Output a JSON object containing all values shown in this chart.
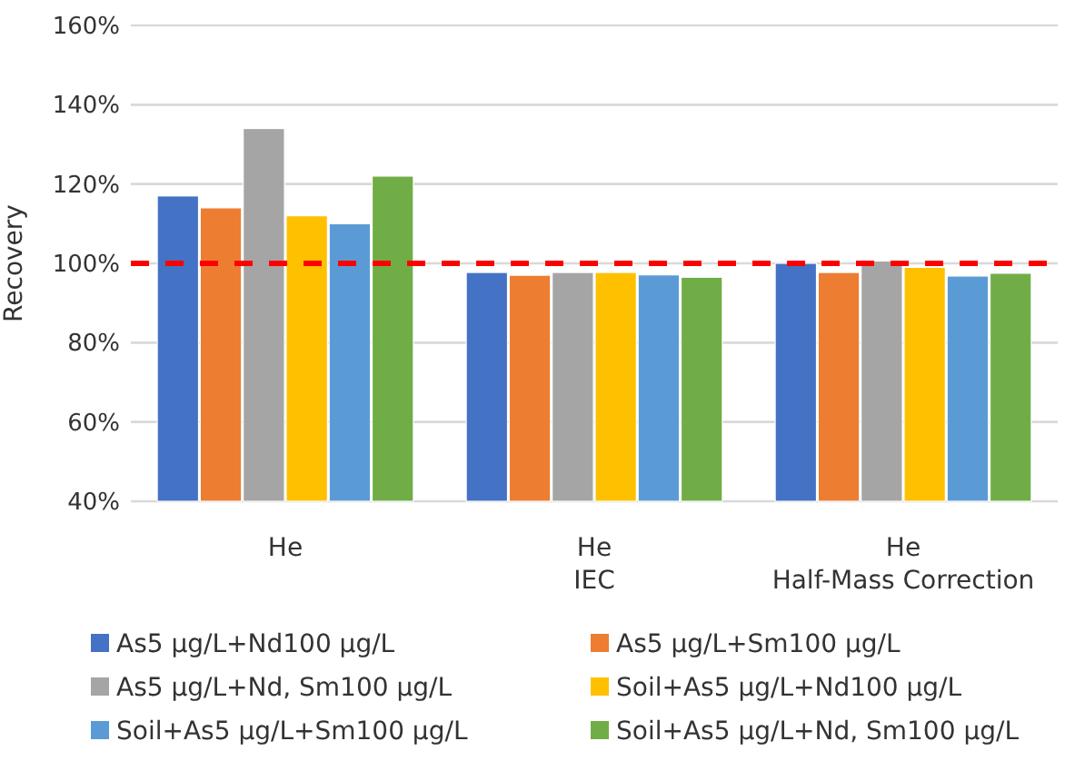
{
  "chart_data": {
    "type": "bar",
    "ylabel": "Recovery",
    "categories": [
      "He",
      "He\nIEC",
      "He\nHalf-Mass Correction"
    ],
    "series": [
      {
        "name": "As5 µg/L+Nd100 µg/L",
        "color": "#4472c4",
        "values": [
          117,
          97.7,
          100
        ]
      },
      {
        "name": "As5 µg/L+Sm100 µg/L",
        "color": "#ed7d31",
        "values": [
          114,
          97,
          97.7
        ]
      },
      {
        "name": "As5 µg/L+Nd, Sm100 µg/L",
        "color": "#a5a5a5",
        "values": [
          134,
          97.7,
          100.6
        ]
      },
      {
        "name": "Soil+As5 µg/L+Nd100 µg/L",
        "color": "#ffc000",
        "values": [
          112,
          97.7,
          99
        ]
      },
      {
        "name": "Soil+As5 µg/L+Sm100 µg/L",
        "color": "#5b9bd5",
        "values": [
          110,
          97.1,
          96.8
        ]
      },
      {
        "name": "Soil+As5 µg/L+Nd, Sm100 µg/L",
        "color": "#70ad47",
        "values": [
          122,
          96.5,
          97.5
        ]
      }
    ],
    "ylim": [
      40,
      160
    ],
    "yticks": [
      {
        "value": 40,
        "label": "40%"
      },
      {
        "value": 60,
        "label": "60%"
      },
      {
        "value": 80,
        "label": "80%"
      },
      {
        "value": 100,
        "label": "100%"
      },
      {
        "value": 120,
        "label": "120%"
      },
      {
        "value": 140,
        "label": "140%"
      },
      {
        "value": 160,
        "label": "160%"
      }
    ],
    "grid": "y",
    "legend": "bottom",
    "ref_lines": [
      {
        "axis": "y",
        "value": 100,
        "color": "#ff0000",
        "line_style": "dashed"
      }
    ]
  }
}
